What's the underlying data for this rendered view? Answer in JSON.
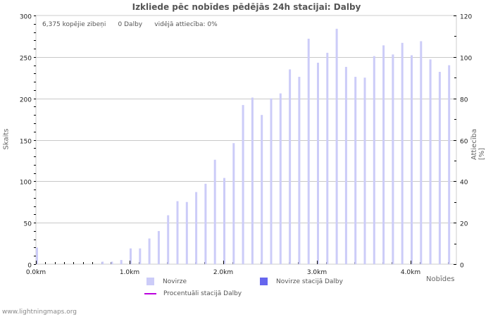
{
  "title": "Izkliede pēc nobīdes pēdējās 24h stacijai: Dalby",
  "stats": {
    "total": "6,375 kopējie zibeņi",
    "station": "0 Dalby",
    "ratio": "vidējā attiecība: 0%"
  },
  "axes": {
    "left_label": "Skaits",
    "right_label": "Attiecība [%]",
    "x_label": "Nobīdes",
    "left_ticks": [
      "0",
      "50",
      "100",
      "150",
      "200",
      "250",
      "300"
    ],
    "right_ticks": [
      "0",
      "20",
      "40",
      "60",
      "80",
      "100",
      "120"
    ],
    "x_ticks": [
      "0.0km",
      "1.0km",
      "2.0km",
      "3.0km",
      "4.0km"
    ]
  },
  "legend": {
    "items": [
      {
        "label": "Novirze",
        "color": "#ccccf8"
      },
      {
        "label": "Novirze stacijā Dalby",
        "color": "#6666ee"
      },
      {
        "label": "Procentuāli stacijā Dalby",
        "color": "#bb00dd"
      }
    ]
  },
  "footer": "www.lightningmaps.org",
  "chart_data": {
    "type": "bar",
    "title": "Izkliede pēc nobīdes pēdējās 24h stacijai: Dalby",
    "xlabel": "Nobīdes",
    "ylabel": "Skaits",
    "y2label": "Attiecība [%]",
    "ylim": [
      0,
      300
    ],
    "y2lim": [
      0,
      120
    ],
    "grid": true,
    "legend_position": "bottom",
    "categories": [
      "0.0",
      "0.1",
      "0.2",
      "0.3",
      "0.4",
      "0.5",
      "0.6",
      "0.7",
      "0.8",
      "0.9",
      "1.0",
      "1.1",
      "1.2",
      "1.3",
      "1.4",
      "1.5",
      "1.6",
      "1.7",
      "1.8",
      "1.9",
      "2.0",
      "2.1",
      "2.2",
      "2.3",
      "2.4",
      "2.5",
      "2.6",
      "2.7",
      "2.8",
      "2.9",
      "3.0",
      "3.1",
      "3.2",
      "3.3",
      "3.4",
      "3.5",
      "3.6",
      "3.7",
      "3.8",
      "3.9",
      "4.0",
      "4.1",
      "4.2",
      "4.3",
      "4.4"
    ],
    "series": [
      {
        "name": "Novirze",
        "values": [
          20,
          0,
          0,
          0,
          0,
          0,
          0,
          3,
          3,
          5,
          19,
          19,
          31,
          40,
          59,
          76,
          75,
          87,
          97,
          126,
          104,
          146,
          192,
          201,
          180,
          200,
          206,
          235,
          226,
          272,
          243,
          255,
          284,
          238,
          226,
          225,
          251,
          264,
          253,
          267,
          252,
          269,
          247,
          232,
          240
        ]
      },
      {
        "name": "Novirze stacijā Dalby",
        "values": [
          0,
          0,
          0,
          0,
          0,
          0,
          0,
          0,
          0,
          0,
          0,
          0,
          0,
          0,
          0,
          0,
          0,
          0,
          0,
          0,
          0,
          0,
          0,
          0,
          0,
          0,
          0,
          0,
          0,
          0,
          0,
          0,
          0,
          0,
          0,
          0,
          0,
          0,
          0,
          0,
          0,
          0,
          0,
          0,
          0
        ]
      },
      {
        "name": "Procentuāli stacijā Dalby",
        "values": [
          0,
          0,
          0,
          0,
          0,
          0,
          0,
          0,
          0,
          0,
          0,
          0,
          0,
          0,
          0,
          0,
          0,
          0,
          0,
          0,
          0,
          0,
          0,
          0,
          0,
          0,
          0,
          0,
          0,
          0,
          0,
          0,
          0,
          0,
          0,
          0,
          0,
          0,
          0,
          0,
          0,
          0,
          0,
          0,
          0
        ]
      }
    ]
  }
}
